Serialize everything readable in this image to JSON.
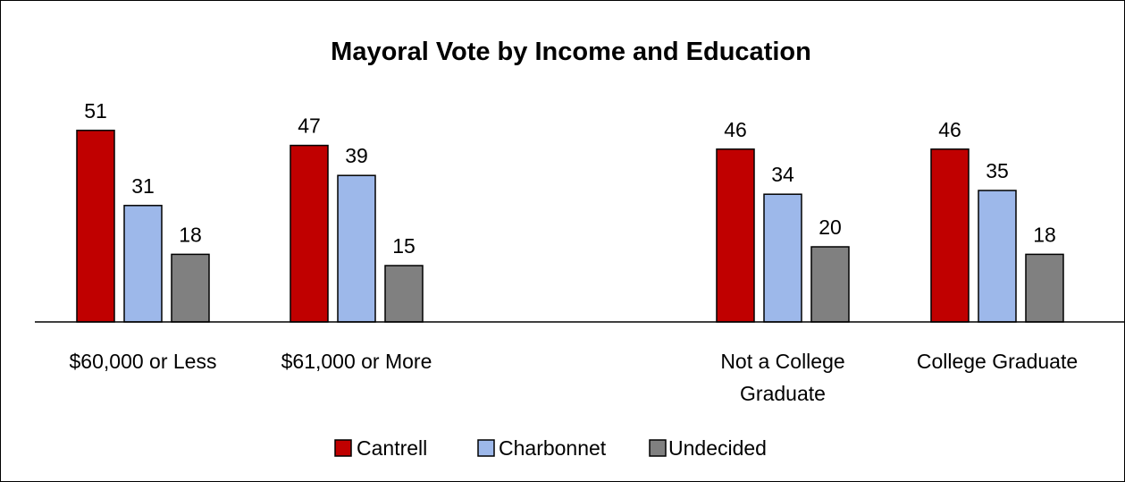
{
  "chart_data": {
    "type": "bar",
    "title": "Mayoral Vote by Income and Education",
    "xlabel": "",
    "ylabel": "",
    "ylim": [
      0,
      60
    ],
    "grid": false,
    "legend_position": "bottom",
    "data_labels": true,
    "categories": [
      "$60,000 or Less",
      "$61,000 or More",
      "Not a College Graduate",
      "College Graduate"
    ],
    "series": [
      {
        "name": "Cantrell",
        "color": "#c00000",
        "values": [
          51,
          47,
          46,
          46
        ]
      },
      {
        "name": "Charbonnet",
        "color": "#9db8ea",
        "values": [
          31,
          39,
          34,
          35
        ]
      },
      {
        "name": "Undecided",
        "color": "#808080",
        "values": [
          18,
          15,
          20,
          18
        ]
      }
    ]
  }
}
